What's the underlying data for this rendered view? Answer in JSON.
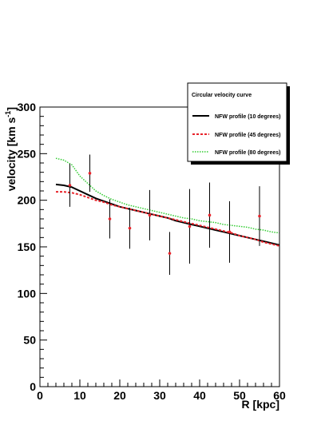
{
  "chart_data": {
    "type": "line",
    "xlabel": "R [kpc]",
    "ylabel_main": "velocity [km s",
    "ylabel_sup": "-1",
    "ylabel_tail": "]",
    "xlim": [
      0,
      60
    ],
    "ylim": [
      0,
      300
    ],
    "x_ticks": [
      0,
      10,
      20,
      30,
      40,
      50,
      60
    ],
    "y_ticks": [
      0,
      50,
      100,
      150,
      200,
      250,
      300
    ],
    "grid": false,
    "legend_position": "top-right",
    "legend_title": "Circular velocity curve",
    "series": [
      {
        "name": "NFW profile (10 degrees)",
        "color": "#000000",
        "style": "solid",
        "x": [
          4,
          6,
          8,
          10,
          12,
          14,
          16,
          18,
          20,
          22,
          24,
          26,
          28,
          30,
          32,
          34,
          36,
          38,
          40,
          42,
          44,
          46,
          48,
          50,
          52,
          54,
          56,
          58,
          60
        ],
        "y": [
          217,
          216,
          214,
          210,
          206,
          202,
          199,
          196,
          193,
          191,
          189,
          187,
          185,
          183,
          181,
          178,
          176,
          174,
          172,
          170,
          168,
          166,
          164,
          162,
          160,
          158,
          156,
          154,
          152
        ]
      },
      {
        "name": "NFW profile (45 degrees)",
        "color": "#e8232a",
        "style": "dashed",
        "x": [
          4,
          6,
          8,
          10,
          12,
          14,
          16,
          18,
          20,
          22,
          24,
          26,
          28,
          30,
          32,
          34,
          36,
          38,
          40,
          42,
          44,
          46,
          48,
          50,
          52,
          54,
          56,
          58,
          60
        ],
        "y": [
          209,
          209,
          208,
          206,
          203,
          200,
          198,
          195,
          193,
          191,
          189,
          187,
          185,
          183,
          181,
          179,
          177,
          175,
          173,
          171,
          169,
          167,
          165,
          162,
          160,
          158,
          155,
          153,
          151
        ]
      },
      {
        "name": "NFW profile (80 degrees)",
        "color": "#33cc33",
        "style": "dotted",
        "x": [
          4,
          6,
          8,
          10,
          12,
          14,
          16,
          18,
          20,
          22,
          24,
          26,
          28,
          30,
          32,
          34,
          36,
          38,
          40,
          42,
          44,
          46,
          48,
          50,
          52,
          54,
          56,
          58,
          60
        ],
        "y": [
          245,
          243,
          238,
          226,
          218,
          210,
          205,
          201,
          198,
          195,
          193,
          191,
          189,
          187,
          185,
          183,
          181,
          180,
          178,
          177,
          176,
          174,
          173,
          172,
          171,
          169,
          168,
          166,
          165
        ]
      }
    ],
    "data_points": {
      "x": [
        7.5,
        12.5,
        17.5,
        22.5,
        27.5,
        32.5,
        37.5,
        42.5,
        47.5,
        55
      ],
      "y": [
        216,
        229,
        180,
        170,
        184,
        143,
        172,
        184,
        166,
        183
      ],
      "err": [
        23,
        20,
        21,
        22,
        27,
        23,
        40,
        35,
        33,
        32
      ],
      "point_color": "#e8232a",
      "bar_color": "#000000"
    }
  }
}
